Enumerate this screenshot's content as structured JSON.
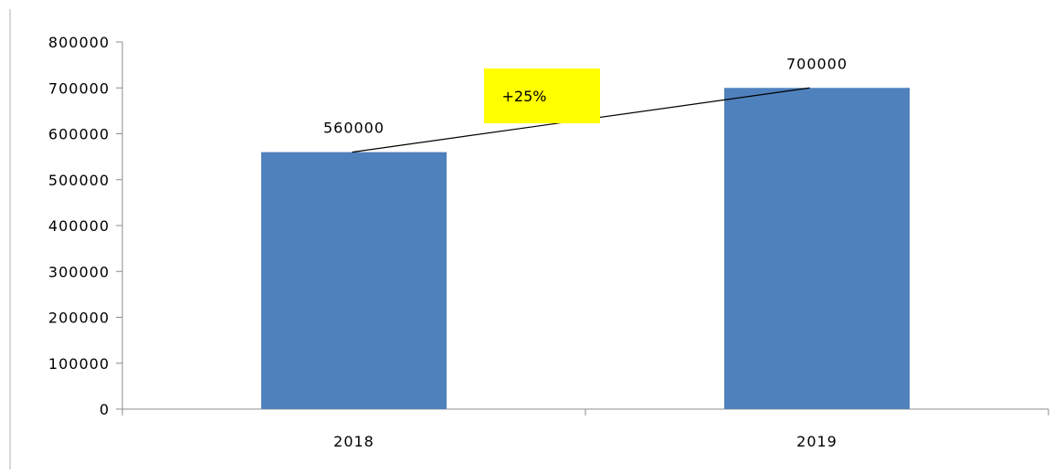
{
  "chart_data": {
    "type": "bar",
    "title": "",
    "xlabel": "",
    "ylabel": "",
    "categories": [
      "2018",
      "2019"
    ],
    "values": [
      560000,
      700000
    ],
    "data_labels": [
      "560000",
      "700000"
    ],
    "ylim": [
      0,
      800000
    ],
    "y_ticks": [
      0,
      100000,
      200000,
      300000,
      400000,
      500000,
      600000,
      700000,
      800000
    ],
    "y_tick_labels": [
      "0",
      "100000",
      "200000",
      "300000",
      "400000",
      "500000",
      "600000",
      "700000",
      "800000"
    ],
    "grid": false,
    "legend": "none",
    "bar_color": "#4f81bd",
    "annotation": {
      "text": "+25%",
      "background": "#ffff00",
      "connects": [
        "2018",
        "2019"
      ]
    }
  }
}
